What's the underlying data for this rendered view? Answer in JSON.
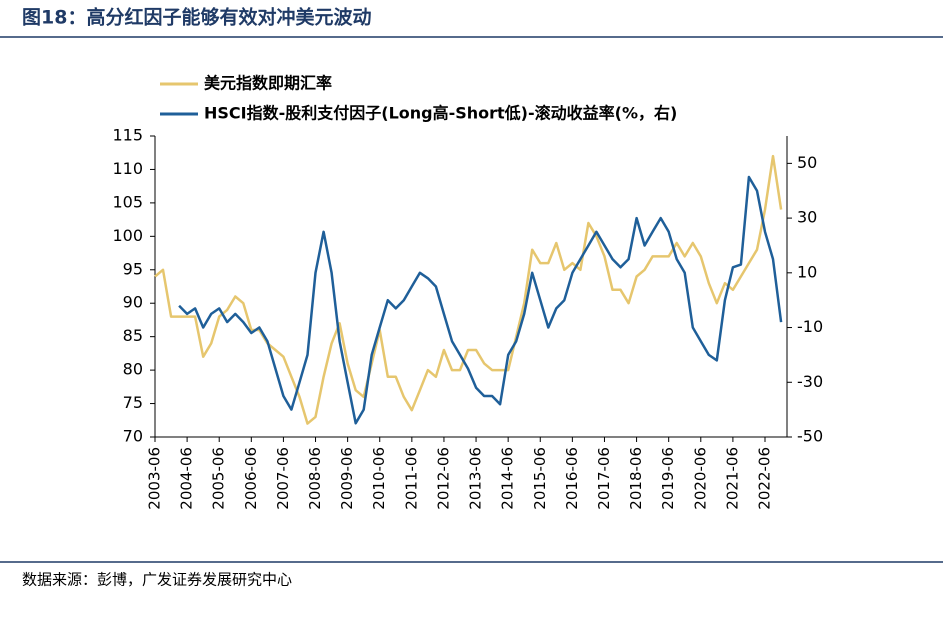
{
  "title": "图18：高分红因子能够有效对冲美元波动",
  "source": "数据来源：彭博，广发证券发展研究中心",
  "chart_data": {
    "type": "line",
    "categories": [
      "2003-06",
      null,
      null,
      null,
      "2004-06",
      null,
      null,
      null,
      "2005-06",
      null,
      null,
      null,
      "2006-06",
      null,
      null,
      null,
      "2007-06",
      null,
      null,
      null,
      "2008-06",
      null,
      null,
      null,
      "2009-06",
      null,
      null,
      null,
      "2010-06",
      null,
      null,
      null,
      "2011-06",
      null,
      null,
      null,
      "2012-06",
      null,
      null,
      null,
      "2013-06",
      null,
      null,
      null,
      "2014-06",
      null,
      null,
      null,
      "2015-06",
      null,
      null,
      null,
      "2016-06",
      null,
      null,
      null,
      "2017-06",
      null,
      null,
      null,
      "2018-06",
      null,
      null,
      null,
      "2019-06",
      null,
      null,
      null,
      "2020-06",
      null,
      null,
      null,
      "2021-06",
      null,
      null,
      null,
      "2022-06",
      null,
      null
    ],
    "series": [
      {
        "name": "美元指数即期汇率",
        "color": "#e6c66e",
        "axis": "y",
        "values": [
          94,
          95,
          88,
          88,
          88,
          88,
          82,
          84,
          88,
          89,
          91,
          90,
          86,
          86,
          84,
          83,
          82,
          79,
          76,
          72,
          73,
          79,
          84,
          87,
          81,
          77,
          76,
          81,
          86,
          79,
          79,
          76,
          74,
          77,
          80,
          79,
          83,
          80,
          80,
          83,
          83,
          81,
          80,
          80,
          80,
          85,
          90,
          98,
          96,
          96,
          99,
          95,
          96,
          95,
          102,
          100,
          97,
          92,
          92,
          90,
          94,
          95,
          97,
          97,
          97,
          99,
          97,
          99,
          97,
          93,
          90,
          93,
          92,
          94,
          96,
          98,
          104,
          112,
          104
        ]
      },
      {
        "name": "HSCI指数-股利支付因子(Long高-Short低)-滚动收益率(%，右)",
        "color": "#1f5f99",
        "axis": "y2",
        "values": [
          null,
          null,
          null,
          -2,
          -5,
          -3,
          -10,
          -5,
          -3,
          -8,
          -5,
          -8,
          -12,
          -10,
          -15,
          -25,
          -35,
          -40,
          -30,
          -20,
          10,
          25,
          10,
          -15,
          -30,
          -45,
          -40,
          -20,
          -10,
          0,
          -3,
          0,
          5,
          10,
          8,
          5,
          -5,
          -15,
          -20,
          -25,
          -32,
          -35,
          -35,
          -38,
          -20,
          -15,
          -5,
          10,
          0,
          -10,
          -3,
          0,
          10,
          15,
          20,
          25,
          20,
          15,
          12,
          15,
          30,
          20,
          25,
          30,
          25,
          15,
          10,
          -10,
          -15,
          -20,
          -22,
          0,
          12,
          13,
          45,
          40,
          25,
          15,
          -8
        ]
      }
    ],
    "ylim": [
      70,
      115
    ],
    "yticks": [
      70,
      75,
      80,
      85,
      90,
      95,
      100,
      105,
      110,
      115
    ],
    "y2lim": [
      -50,
      60
    ],
    "y2ticks": [
      -50,
      -30,
      -10,
      10,
      30,
      50
    ]
  }
}
